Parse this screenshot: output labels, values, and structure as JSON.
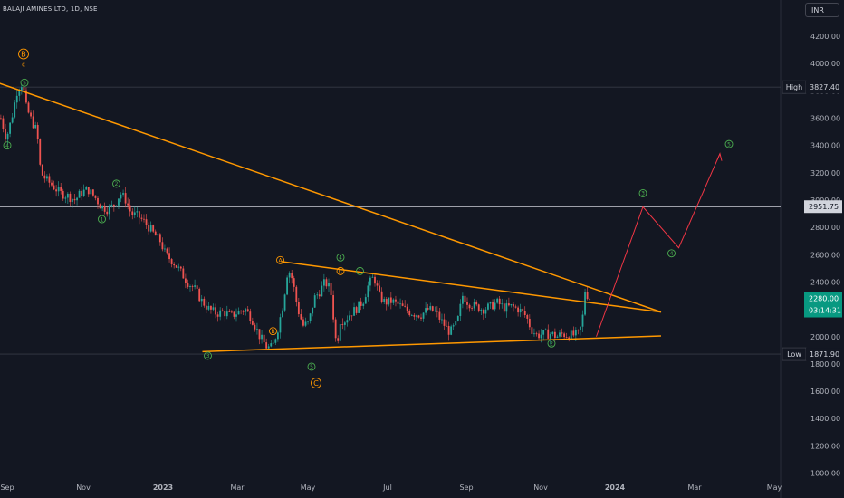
{
  "header": {
    "symbol": "BALAJI AMINES LTD, 1D, NSE",
    "currency": "INR"
  },
  "chart_data": {
    "type": "candlestick",
    "title": "BALAJI AMINES LTD, 1D, NSE",
    "currency": "INR",
    "y_ticks": [
      1000,
      1200,
      1400,
      1600,
      1800,
      2000,
      2200,
      2400,
      2600,
      2800,
      3000,
      3200,
      3400,
      3600,
      3800,
      4000,
      4200
    ],
    "x_ticks": [
      "Sep",
      "Nov",
      "2023",
      "Mar",
      "May",
      "Jul",
      "Sep",
      "Nov",
      "2024",
      "Mar",
      "May"
    ],
    "ylim": [
      960,
      4280
    ],
    "grid": false,
    "price_path": [
      [
        0,
        3600
      ],
      [
        6,
        3450
      ],
      [
        12,
        3600
      ],
      [
        18,
        3800
      ],
      [
        24,
        3860
      ],
      [
        28,
        3680
      ],
      [
        34,
        3580
      ],
      [
        40,
        3500
      ],
      [
        44,
        3200
      ],
      [
        50,
        3150
      ],
      [
        58,
        3100
      ],
      [
        66,
        3050
      ],
      [
        74,
        3030
      ],
      [
        82,
        3000
      ],
      [
        88,
        3050
      ],
      [
        96,
        3080
      ],
      [
        104,
        3020
      ],
      [
        110,
        2960
      ],
      [
        118,
        2930
      ],
      [
        126,
        2970
      ],
      [
        132,
        3050
      ],
      [
        138,
        3000
      ],
      [
        144,
        2900
      ],
      [
        152,
        2880
      ],
      [
        160,
        2830
      ],
      [
        168,
        2760
      ],
      [
        176,
        2700
      ],
      [
        182,
        2600
      ],
      [
        190,
        2550
      ],
      [
        198,
        2480
      ],
      [
        206,
        2400
      ],
      [
        214,
        2350
      ],
      [
        222,
        2260
      ],
      [
        230,
        2200
      ],
      [
        238,
        2170
      ],
      [
        246,
        2180
      ],
      [
        254,
        2150
      ],
      [
        262,
        2180
      ],
      [
        270,
        2200
      ],
      [
        278,
        2120
      ],
      [
        286,
        2000
      ],
      [
        294,
        1920
      ],
      [
        300,
        1920
      ],
      [
        306,
        2060
      ],
      [
        312,
        2250
      ],
      [
        317,
        2500
      ],
      [
        322,
        2420
      ],
      [
        328,
        2200
      ],
      [
        334,
        2080
      ],
      [
        340,
        2100
      ],
      [
        346,
        2280
      ],
      [
        352,
        2330
      ],
      [
        358,
        2400
      ],
      [
        364,
        2350
      ],
      [
        368,
        2100
      ],
      [
        371,
        1900
      ],
      [
        374,
        2120
      ],
      [
        380,
        2120
      ],
      [
        386,
        2170
      ],
      [
        392,
        2200
      ],
      [
        400,
        2260
      ],
      [
        406,
        2380
      ],
      [
        412,
        2440
      ],
      [
        418,
        2300
      ],
      [
        424,
        2250
      ],
      [
        432,
        2260
      ],
      [
        440,
        2230
      ],
      [
        448,
        2190
      ],
      [
        456,
        2170
      ],
      [
        464,
        2160
      ],
      [
        472,
        2200
      ],
      [
        480,
        2180
      ],
      [
        488,
        2100
      ],
      [
        496,
        2030
      ],
      [
        504,
        2100
      ],
      [
        510,
        2300
      ],
      [
        516,
        2250
      ],
      [
        524,
        2220
      ],
      [
        532,
        2200
      ],
      [
        540,
        2220
      ],
      [
        548,
        2250
      ],
      [
        556,
        2210
      ],
      [
        564,
        2220
      ],
      [
        572,
        2200
      ],
      [
        580,
        2150
      ],
      [
        586,
        2050
      ],
      [
        592,
        2010
      ],
      [
        600,
        2020
      ],
      [
        608,
        2020
      ],
      [
        614,
        2000
      ],
      [
        620,
        2020
      ],
      [
        626,
        2010
      ],
      [
        632,
        2010
      ],
      [
        638,
        2020
      ],
      [
        642,
        2100
      ],
      [
        645,
        2340
      ],
      [
        648,
        2300
      ],
      [
        651,
        2280
      ]
    ],
    "lines": [
      {
        "kind": "trendline",
        "color": "#ff9800",
        "from": [
          "Aug 2022",
          3940
        ],
        "to": [
          "Jan 2024",
          2180
        ]
      },
      {
        "kind": "trendline",
        "color": "#ff9800",
        "from": [
          "Apr 2023",
          2550
        ],
        "to": [
          "Jan 2024",
          2180
        ]
      },
      {
        "kind": "trendline",
        "color": "#ff9800",
        "from": [
          "Feb 2023",
          1890
        ],
        "to": [
          "Jan 2024",
          2005
        ]
      },
      {
        "kind": "projection",
        "color": "#f23645",
        "points": [
          [
            "Dec 2023",
            2000
          ],
          [
            "Jan 2024",
            2950
          ],
          [
            "Feb 2024",
            2650
          ],
          [
            "Mar 2024",
            3340
          ]
        ]
      }
    ],
    "wave_labels": [
      {
        "text": "B",
        "color": "#ff9800",
        "circle": true,
        "at": [
          "Sep 2022",
          4070
        ]
      },
      {
        "text": "c",
        "color": "#ff9800",
        "circle": false,
        "at": [
          "Sep 2022",
          3990
        ]
      },
      {
        "text": "5",
        "color": "#4caf50",
        "circle": true,
        "at": [
          "Sep 2022",
          3860
        ]
      },
      {
        "text": "4",
        "color": "#4caf50",
        "circle": true,
        "at": [
          "Sep 2022",
          3400
        ]
      },
      {
        "text": "2",
        "color": "#4caf50",
        "circle": true,
        "at": [
          "Dec 2022",
          3120
        ]
      },
      {
        "text": "1",
        "color": "#4caf50",
        "circle": true,
        "at": [
          "Dec 2022",
          2860
        ]
      },
      {
        "text": "A",
        "color": "#ff9800",
        "circle": true,
        "at": [
          "Apr 2023",
          2560
        ]
      },
      {
        "text": "4",
        "color": "#4caf50",
        "circle": true,
        "at": [
          "May 2023",
          2580
        ]
      },
      {
        "text": "C",
        "color": "#ff9800",
        "circle": true,
        "at": [
          "May 2023",
          2480
        ]
      },
      {
        "text": "B",
        "color": "#ff9800",
        "circle": true,
        "at": [
          "Apr 2023",
          2040
        ]
      },
      {
        "text": "3",
        "color": "#4caf50",
        "circle": true,
        "at": [
          "Feb 2023",
          1860
        ]
      },
      {
        "text": "5",
        "color": "#4caf50",
        "circle": true,
        "at": [
          "May 2023",
          1780
        ]
      },
      {
        "text": "C",
        "color": "#ff9800",
        "circle": true,
        "at": [
          "May 2023",
          1660
        ]
      },
      {
        "text": "1",
        "color": "#4caf50",
        "circle": true,
        "at": [
          "Jun 2023",
          2480
        ]
      },
      {
        "text": "2",
        "color": "#4caf50",
        "circle": true,
        "at": [
          "Nov 2023",
          1950
        ]
      },
      {
        "text": "3",
        "color": "#4caf50",
        "circle": true,
        "at": [
          "Jan 2024",
          3050
        ]
      },
      {
        "text": "4",
        "color": "#4caf50",
        "circle": true,
        "at": [
          "Feb 2024",
          2610
        ]
      },
      {
        "text": "5",
        "color": "#4caf50",
        "circle": true,
        "at": [
          "Mar 2024",
          3410
        ]
      }
    ],
    "levels": [
      {
        "label": "High",
        "value": "3827.40",
        "price": 3827.4,
        "line": false,
        "tag_color": "#131722"
      },
      {
        "label": "",
        "value": "2951.75",
        "price": 2951.75,
        "line": true,
        "tag_color": "#d1d4dc"
      },
      {
        "label": "",
        "value": "2280.00",
        "sub": "03:14:31",
        "price": 2280,
        "line": false,
        "tag_color": "#089981"
      },
      {
        "label": "Low",
        "value": "1871.90",
        "price": 1871.9,
        "line": false,
        "tag_color": "#131722"
      }
    ],
    "colors": {
      "up": "#26a69a",
      "down": "#ef5350",
      "background": "#131722",
      "axis_text": "#b2b5be",
      "trend": "#ff9800",
      "projection": "#f23645"
    }
  }
}
